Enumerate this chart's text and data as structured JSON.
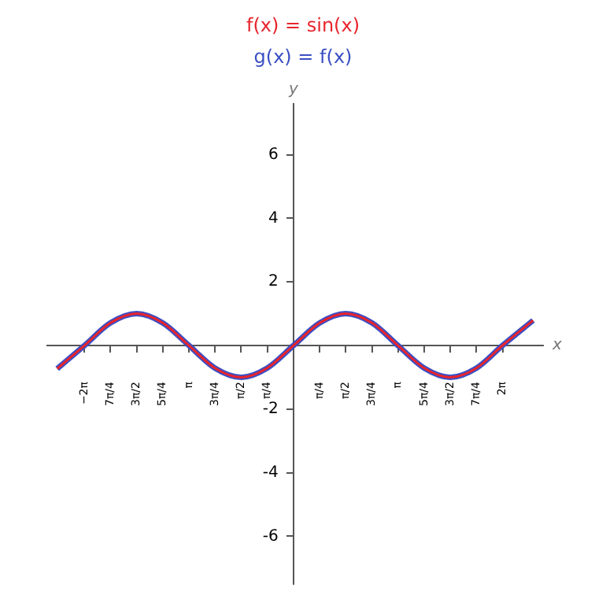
{
  "chart_data": {
    "type": "line",
    "xlabel": "x",
    "ylabel": "y",
    "legend": "top",
    "grid": false,
    "marker": "none",
    "line_style": "solid",
    "x": [
      -7.1,
      -6.28,
      -5.5,
      -4.71,
      -3.93,
      -3.14,
      -2.36,
      -1.57,
      -0.79,
      0,
      0.79,
      1.57,
      2.36,
      3.14,
      3.93,
      4.71,
      5.5,
      6.28,
      7.2
    ],
    "series": [
      {
        "name": "f(x) = sin(x)",
        "color": "#e8242c",
        "values": [
          -0.73,
          0,
          0.71,
          1,
          0.71,
          0,
          -0.71,
          -1,
          -0.71,
          0,
          0.71,
          1,
          0.71,
          0,
          -0.71,
          -1,
          -0.71,
          0,
          0.79
        ]
      },
      {
        "name": "g(x) = f(x)",
        "color": "#3b4fc4",
        "values": [
          -0.73,
          0,
          0.71,
          1,
          0.71,
          0,
          -0.71,
          -1,
          -0.71,
          0,
          0.71,
          1,
          0.71,
          0,
          -0.71,
          -1,
          -0.71,
          0,
          0.79
        ]
      }
    ],
    "xlim": [
      -7.4,
      7.5
    ],
    "ylim": [
      -7.5,
      7.6
    ],
    "xticks": [
      {
        "value": -6.283,
        "label": "−2π"
      },
      {
        "value": -5.498,
        "label": "7π/4"
      },
      {
        "value": -4.712,
        "label": "3π/2"
      },
      {
        "value": -3.927,
        "label": "5π/4"
      },
      {
        "value": -3.142,
        "label": "π"
      },
      {
        "value": -2.356,
        "label": "3π/4"
      },
      {
        "value": -1.571,
        "label": "π/2"
      },
      {
        "value": -0.785,
        "label": "π/4"
      },
      {
        "value": 0.785,
        "label": "π/4"
      },
      {
        "value": 1.571,
        "label": "π/2"
      },
      {
        "value": 2.356,
        "label": "3π/4"
      },
      {
        "value": 3.142,
        "label": "π"
      },
      {
        "value": 3.927,
        "label": "5π/4"
      },
      {
        "value": 4.712,
        "label": "3π/2"
      },
      {
        "value": 5.498,
        "label": "7π/4"
      },
      {
        "value": 6.283,
        "label": "2π"
      }
    ],
    "yticks": [
      -6,
      -4,
      -2,
      2,
      4,
      6
    ]
  }
}
